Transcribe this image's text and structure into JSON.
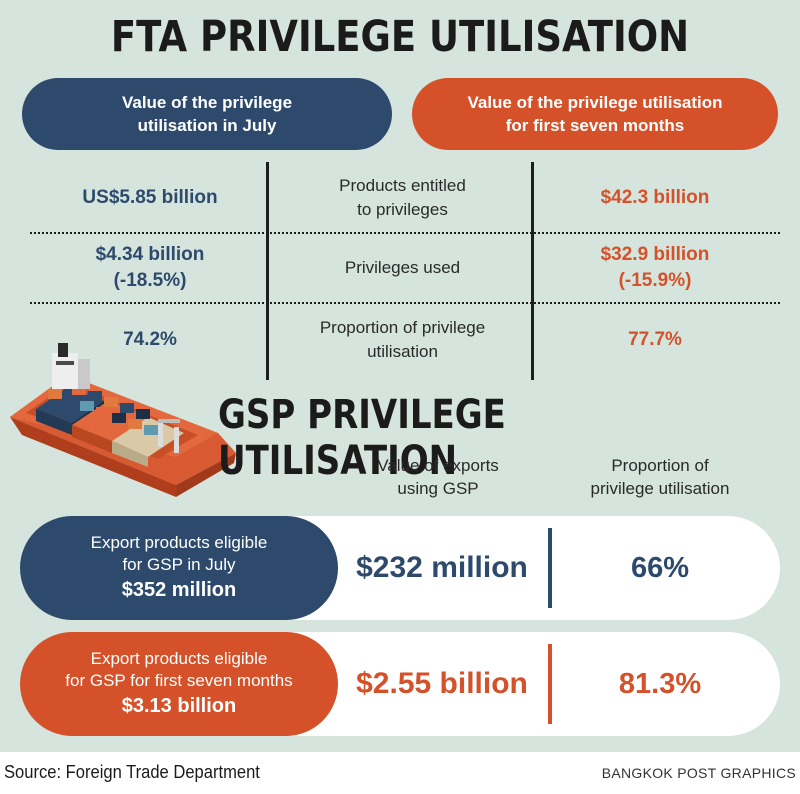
{
  "fta": {
    "title": "FTA PRIVILEGE UTILISATION",
    "july_header": "Value of the privilege\nutilisation in July",
    "seven_month_header": "Value of the privilege utilisation\nfor first seven months",
    "rows": [
      {
        "label": "Products entitled\nto privileges",
        "july": "US$5.85 billion",
        "seven_months": "$42.3 billion"
      },
      {
        "label": "Privileges used",
        "july": "$4.34 billion\n(-18.5%)",
        "seven_months": "$32.9 billion\n(-15.9%)"
      },
      {
        "label": "Proportion of privilege\nutilisation",
        "july": "74.2%",
        "seven_months": "77.7%"
      }
    ]
  },
  "gsp": {
    "title": "GSP PRIVILEGE UTILISATION",
    "col_value_header": "Value of exports\nusing GSP",
    "col_proportion_header": "Proportion of\nprivilege utilisation",
    "rows": [
      {
        "label": "Export products eligible\nfor GSP in July",
        "eligible": "$352 million",
        "value": "$232 million",
        "proportion": "66%"
      },
      {
        "label": "Export products eligible\nfor GSP for first seven months",
        "eligible": "$3.13 billion",
        "value": "$2.55 billion",
        "proportion": "81.3%"
      }
    ]
  },
  "footer": {
    "source": "Source: Foreign Trade Department",
    "credit": "BANGKOK POST GRAPHICS"
  },
  "colors": {
    "navy": "#2d4a6c",
    "orange": "#d4512a",
    "background": "#d5e4dc"
  },
  "icons": {
    "illustration": "container-ship-icon"
  }
}
